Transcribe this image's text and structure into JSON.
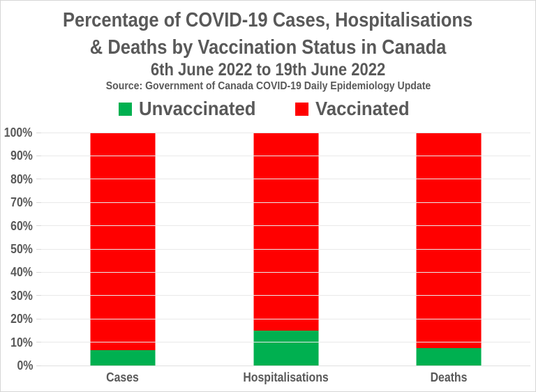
{
  "colors": {
    "unvaccinated_green": "#00B050",
    "vaccinated_red": "#FF0000",
    "text_gray": "#595959",
    "gridline": "#e9e9e9",
    "frame_border": "#d5d5d5"
  },
  "chart_data": {
    "type": "bar",
    "stacked": true,
    "title_line1": "Percentage of COVID-19 Cases, Hospitalisations",
    "title_line2": "& Deaths by Vaccination Status in Canada",
    "subtitle": "6th June 2022 to 19th June 2022",
    "source_note": "Source: Government of Canada COVID-19 Daily Epidemiology Update",
    "categories": [
      "Cases",
      "Hospitalisations",
      "Deaths"
    ],
    "series": [
      {
        "name": "Unvaccinated",
        "color": "#00B050",
        "values": [
          6.5,
          15,
          7.5
        ]
      },
      {
        "name": "Vaccinated",
        "color": "#FF0000",
        "values": [
          93.5,
          85,
          92.5
        ]
      }
    ],
    "xlabel": "",
    "ylabel": "",
    "ylim": [
      0,
      100
    ],
    "ytick_step": 10,
    "ytick_labels": [
      "0%",
      "10%",
      "20%",
      "30%",
      "40%",
      "50%",
      "60%",
      "70%",
      "80%",
      "90%",
      "100%"
    ],
    "grid": true,
    "legend_position": "top-center"
  }
}
